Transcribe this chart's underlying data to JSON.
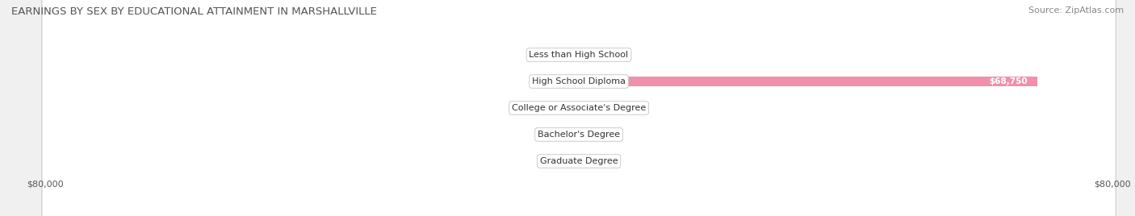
{
  "title": "EARNINGS BY SEX BY EDUCATIONAL ATTAINMENT IN MARSHALLVILLE",
  "source": "Source: ZipAtlas.com",
  "categories": [
    "Less than High School",
    "High School Diploma",
    "College or Associate's Degree",
    "Bachelor's Degree",
    "Graduate Degree"
  ],
  "male_values": [
    0,
    0,
    0,
    0,
    0
  ],
  "female_values": [
    0,
    68750,
    0,
    0,
    0
  ],
  "xlim": 80000,
  "male_color": "#aabfdf",
  "female_color": "#f090aa",
  "stub_color_male": "#b8cfe8",
  "stub_color_female": "#f5aec0",
  "row_bg_color": "#ffffff",
  "row_bg_edge_color": "#d0d0d0",
  "fig_bg_color": "#f0f0f0",
  "title_fontsize": 9.5,
  "source_fontsize": 8,
  "tick_fontsize": 8,
  "label_fontsize": 7.5,
  "cat_fontsize": 8,
  "legend_fontsize": 8.5
}
